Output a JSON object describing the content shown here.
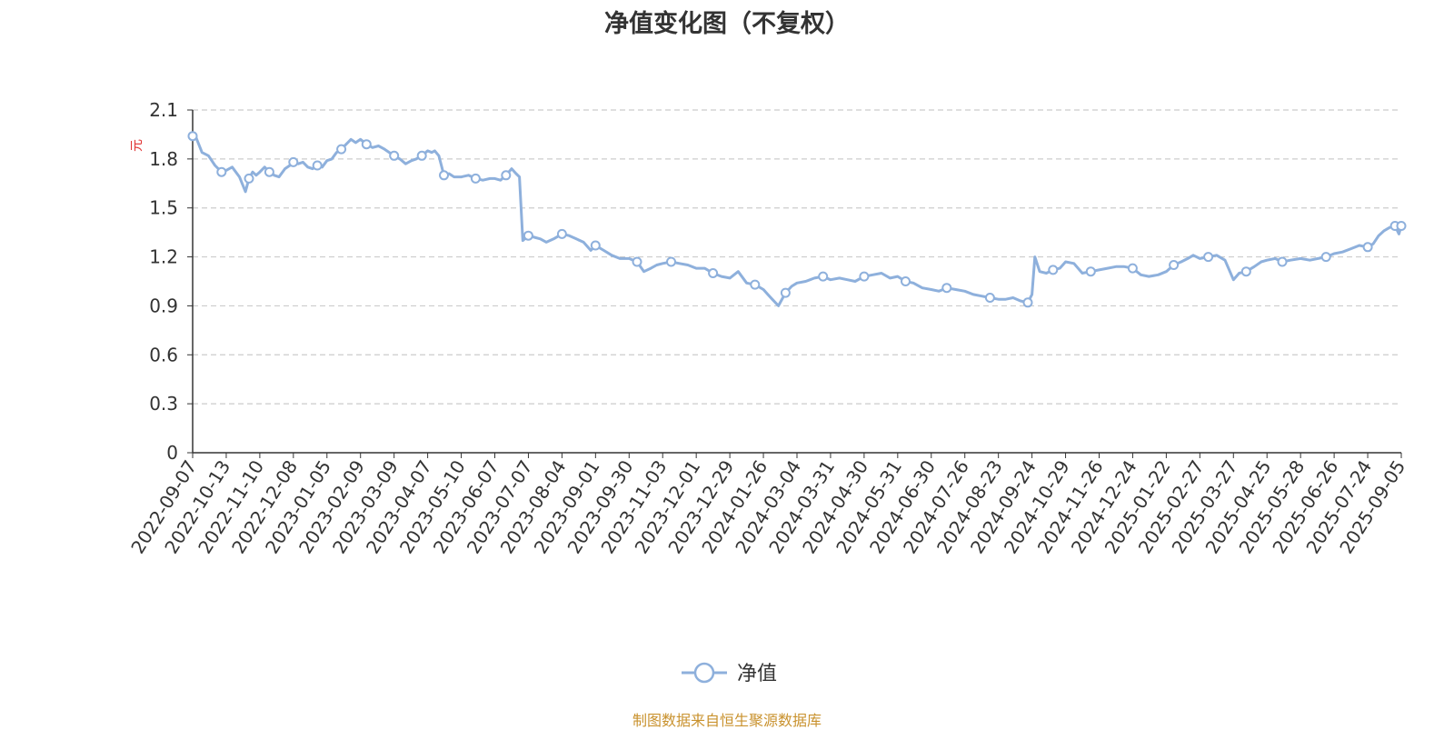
{
  "chart_data": {
    "type": "line",
    "title": "净值变化图（不复权）",
    "ylabel": "元",
    "xlabel": "",
    "ylim": [
      0,
      2.1
    ],
    "y_ticks": [
      "0",
      "0.3",
      "0.6",
      "0.9",
      "1.2",
      "1.5",
      "1.8",
      "2.1"
    ],
    "x_ticks": [
      "2022-09-07",
      "2022-10-13",
      "2022-11-10",
      "2022-12-08",
      "2023-01-05",
      "2023-02-09",
      "2023-03-09",
      "2023-04-07",
      "2023-05-10",
      "2023-06-07",
      "2023-07-07",
      "2023-08-04",
      "2023-09-01",
      "2023-09-30",
      "2023-11-03",
      "2023-12-01",
      "2023-12-29",
      "2024-01-26",
      "2024-03-04",
      "2024-03-31",
      "2024-04-30",
      "2024-05-31",
      "2024-06-30",
      "2024-07-26",
      "2024-08-23",
      "2024-09-24",
      "2024-10-29",
      "2024-11-26",
      "2024-12-24",
      "2025-01-22",
      "2025-02-27",
      "2025-03-27",
      "2025-04-25",
      "2025-05-28",
      "2025-06-26",
      "2025-07-24",
      "2025-09-05"
    ],
    "grid": true,
    "legend_position": "bottom-center",
    "colors": {
      "line": "#8eb0dc",
      "grid": "#cccccc",
      "axis": "#333333"
    },
    "series": [
      {
        "name": "净值",
        "x": [
          "2022-09-07",
          "2022-09-10",
          "2022-09-17",
          "2022-09-24",
          "2022-10-01",
          "2022-10-08",
          "2022-10-13",
          "2022-10-18",
          "2022-10-24",
          "2022-10-29",
          "2022-11-01",
          "2022-11-04",
          "2022-11-07",
          "2022-11-10",
          "2022-11-14",
          "2022-11-18",
          "2022-11-22",
          "2022-11-26",
          "2022-12-01",
          "2022-12-05",
          "2022-12-08",
          "2022-12-12",
          "2022-12-16",
          "2022-12-20",
          "2022-12-24",
          "2022-12-28",
          "2023-01-01",
          "2023-01-05",
          "2023-01-10",
          "2023-01-15",
          "2023-01-20",
          "2023-01-25",
          "2023-01-30",
          "2023-02-04",
          "2023-02-09",
          "2023-02-14",
          "2023-02-19",
          "2023-02-24",
          "2023-03-01",
          "2023-03-05",
          "2023-03-09",
          "2023-03-14",
          "2023-03-19",
          "2023-03-24",
          "2023-03-28",
          "2023-04-02",
          "2023-04-07",
          "2023-04-11",
          "2023-04-14",
          "2023-04-18",
          "2023-04-23",
          "2023-04-28",
          "2023-05-03",
          "2023-05-10",
          "2023-05-16",
          "2023-05-22",
          "2023-05-28",
          "2023-06-03",
          "2023-06-07",
          "2023-06-12",
          "2023-06-17",
          "2023-06-22",
          "2023-06-26",
          "2023-06-29",
          "2023-07-02",
          "2023-07-07",
          "2023-07-12",
          "2023-07-17",
          "2023-07-22",
          "2023-07-28",
          "2023-08-04",
          "2023-08-10",
          "2023-08-16",
          "2023-08-22",
          "2023-08-28",
          "2023-09-01",
          "2023-09-08",
          "2023-09-15",
          "2023-09-22",
          "2023-09-30",
          "2023-10-08",
          "2023-10-15",
          "2023-10-22",
          "2023-10-28",
          "2023-11-03",
          "2023-11-10",
          "2023-11-17",
          "2023-11-24",
          "2023-12-01",
          "2023-12-08",
          "2023-12-15",
          "2023-12-22",
          "2023-12-29",
          "2024-01-05",
          "2024-01-12",
          "2024-01-19",
          "2024-01-26",
          "2024-01-31",
          "2024-02-05",
          "2024-02-12",
          "2024-02-20",
          "2024-02-27",
          "2024-03-04",
          "2024-03-11",
          "2024-03-18",
          "2024-03-25",
          "2024-03-31",
          "2024-04-08",
          "2024-04-15",
          "2024-04-22",
          "2024-04-30",
          "2024-05-08",
          "2024-05-16",
          "2024-05-24",
          "2024-05-31",
          "2024-06-07",
          "2024-06-14",
          "2024-06-22",
          "2024-06-30",
          "2024-07-06",
          "2024-07-12",
          "2024-07-19",
          "2024-07-26",
          "2024-08-02",
          "2024-08-09",
          "2024-08-16",
          "2024-08-23",
          "2024-08-30",
          "2024-09-06",
          "2024-09-13",
          "2024-09-20",
          "2024-09-24",
          "2024-09-27",
          "2024-10-02",
          "2024-10-09",
          "2024-10-16",
          "2024-10-23",
          "2024-10-29",
          "2024-11-05",
          "2024-11-12",
          "2024-11-19",
          "2024-11-26",
          "2024-12-03",
          "2024-12-10",
          "2024-12-17",
          "2024-12-24",
          "2024-12-31",
          "2025-01-07",
          "2025-01-15",
          "2025-01-22",
          "2025-01-30",
          "2025-02-07",
          "2025-02-14",
          "2025-02-20",
          "2025-02-27",
          "2025-03-06",
          "2025-03-13",
          "2025-03-20",
          "2025-03-27",
          "2025-04-01",
          "2025-04-07",
          "2025-04-14",
          "2025-04-20",
          "2025-04-25",
          "2025-05-03",
          "2025-05-10",
          "2025-05-18",
          "2025-05-28",
          "2025-06-05",
          "2025-06-12",
          "2025-06-19",
          "2025-06-26",
          "2025-07-03",
          "2025-07-10",
          "2025-07-17",
          "2025-07-24",
          "2025-07-31",
          "2025-08-07",
          "2025-08-14",
          "2025-08-21",
          "2025-08-28",
          "2025-09-02",
          "2025-09-05"
        ],
        "values": [
          1.94,
          1.94,
          1.84,
          1.82,
          1.76,
          1.72,
          1.73,
          1.75,
          1.69,
          1.6,
          1.68,
          1.72,
          1.7,
          1.72,
          1.75,
          1.72,
          1.7,
          1.69,
          1.74,
          1.76,
          1.78,
          1.77,
          1.78,
          1.75,
          1.74,
          1.76,
          1.75,
          1.79,
          1.8,
          1.84,
          1.86,
          1.89,
          1.92,
          1.9,
          1.92,
          1.89,
          1.87,
          1.88,
          1.86,
          1.84,
          1.82,
          1.8,
          1.77,
          1.79,
          1.8,
          1.82,
          1.85,
          1.84,
          1.85,
          1.82,
          1.7,
          1.71,
          1.69,
          1.69,
          1.7,
          1.68,
          1.67,
          1.68,
          1.68,
          1.67,
          1.7,
          1.74,
          1.71,
          1.69,
          1.3,
          1.33,
          1.32,
          1.31,
          1.29,
          1.31,
          1.34,
          1.33,
          1.31,
          1.29,
          1.24,
          1.27,
          1.24,
          1.21,
          1.19,
          1.19,
          1.17,
          1.11,
          1.13,
          1.15,
          1.16,
          1.17,
          1.16,
          1.15,
          1.13,
          1.13,
          1.1,
          1.08,
          1.07,
          1.11,
          1.04,
          1.03,
          1.0,
          0.97,
          0.94,
          0.9,
          0.98,
          1.02,
          1.04,
          1.05,
          1.07,
          1.08,
          1.06,
          1.07,
          1.06,
          1.05,
          1.08,
          1.09,
          1.1,
          1.07,
          1.08,
          1.05,
          1.04,
          1.01,
          1.0,
          0.99,
          1.01,
          1.0,
          0.99,
          0.97,
          0.96,
          0.95,
          0.94,
          0.94,
          0.95,
          0.93,
          0.92,
          0.97,
          1.2,
          1.11,
          1.1,
          1.12,
          1.13,
          1.17,
          1.16,
          1.1,
          1.11,
          1.12,
          1.13,
          1.14,
          1.14,
          1.13,
          1.09,
          1.08,
          1.09,
          1.11,
          1.15,
          1.17,
          1.19,
          1.21,
          1.19,
          1.2,
          1.21,
          1.18,
          1.06,
          1.1,
          1.11,
          1.14,
          1.17,
          1.18,
          1.19,
          1.17,
          1.18,
          1.19,
          1.18,
          1.19,
          1.2,
          1.22,
          1.23,
          1.25,
          1.27,
          1.26,
          1.28,
          1.33,
          1.36,
          1.38,
          1.39,
          1.34,
          1.39
        ]
      }
    ]
  },
  "legend": {
    "label": "净值"
  },
  "footer": {
    "source": "制图数据来自恒生聚源数据库"
  }
}
